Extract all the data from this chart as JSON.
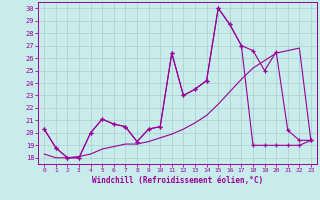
{
  "xlabel": "Windchill (Refroidissement éolien,°C)",
  "ylabel": "",
  "bg_color": "#c8ecec",
  "line_color": "#990099",
  "grid_color": "#aacccc",
  "xlim": [
    -0.5,
    23.5
  ],
  "ylim": [
    17.5,
    30.5
  ],
  "yticks": [
    18,
    19,
    20,
    21,
    22,
    23,
    24,
    25,
    26,
    27,
    28,
    29,
    30
  ],
  "xticks": [
    0,
    1,
    2,
    3,
    4,
    5,
    6,
    7,
    8,
    9,
    10,
    11,
    12,
    13,
    14,
    15,
    16,
    17,
    18,
    19,
    20,
    21,
    22,
    23
  ],
  "series1_x": [
    0,
    1,
    2,
    3,
    4,
    5,
    6,
    7,
    8,
    9,
    10,
    11,
    12,
    13,
    14,
    15,
    16,
    17,
    18,
    19,
    20,
    21,
    22,
    23
  ],
  "series1_y": [
    20.3,
    18.8,
    18.0,
    18.0,
    20.0,
    21.1,
    20.7,
    20.5,
    19.3,
    20.3,
    20.5,
    26.4,
    23.0,
    23.5,
    24.2,
    30.0,
    28.7,
    27.0,
    19.0,
    19.0,
    19.0,
    19.0,
    19.0,
    19.4
  ],
  "series2_x": [
    0,
    1,
    2,
    3,
    4,
    5,
    6,
    7,
    8,
    9,
    10,
    11,
    12,
    13,
    14,
    15,
    16,
    17,
    18,
    19,
    20,
    21,
    22,
    23
  ],
  "series2_y": [
    20.3,
    18.8,
    18.0,
    18.0,
    20.0,
    21.1,
    20.7,
    20.5,
    19.3,
    20.3,
    20.5,
    26.4,
    23.0,
    23.5,
    24.2,
    30.0,
    28.7,
    27.0,
    26.6,
    25.0,
    26.5,
    20.2,
    19.4,
    19.4
  ],
  "series3_x": [
    0,
    1,
    2,
    3,
    4,
    5,
    6,
    7,
    8,
    9,
    10,
    11,
    12,
    13,
    14,
    15,
    16,
    17,
    18,
    19,
    20,
    21,
    22,
    23
  ],
  "series3_y": [
    18.3,
    18.0,
    18.0,
    18.1,
    18.3,
    18.7,
    18.9,
    19.1,
    19.1,
    19.3,
    19.6,
    19.9,
    20.3,
    20.8,
    21.4,
    22.3,
    23.3,
    24.3,
    25.2,
    25.8,
    26.4,
    26.6,
    26.8,
    19.3
  ]
}
